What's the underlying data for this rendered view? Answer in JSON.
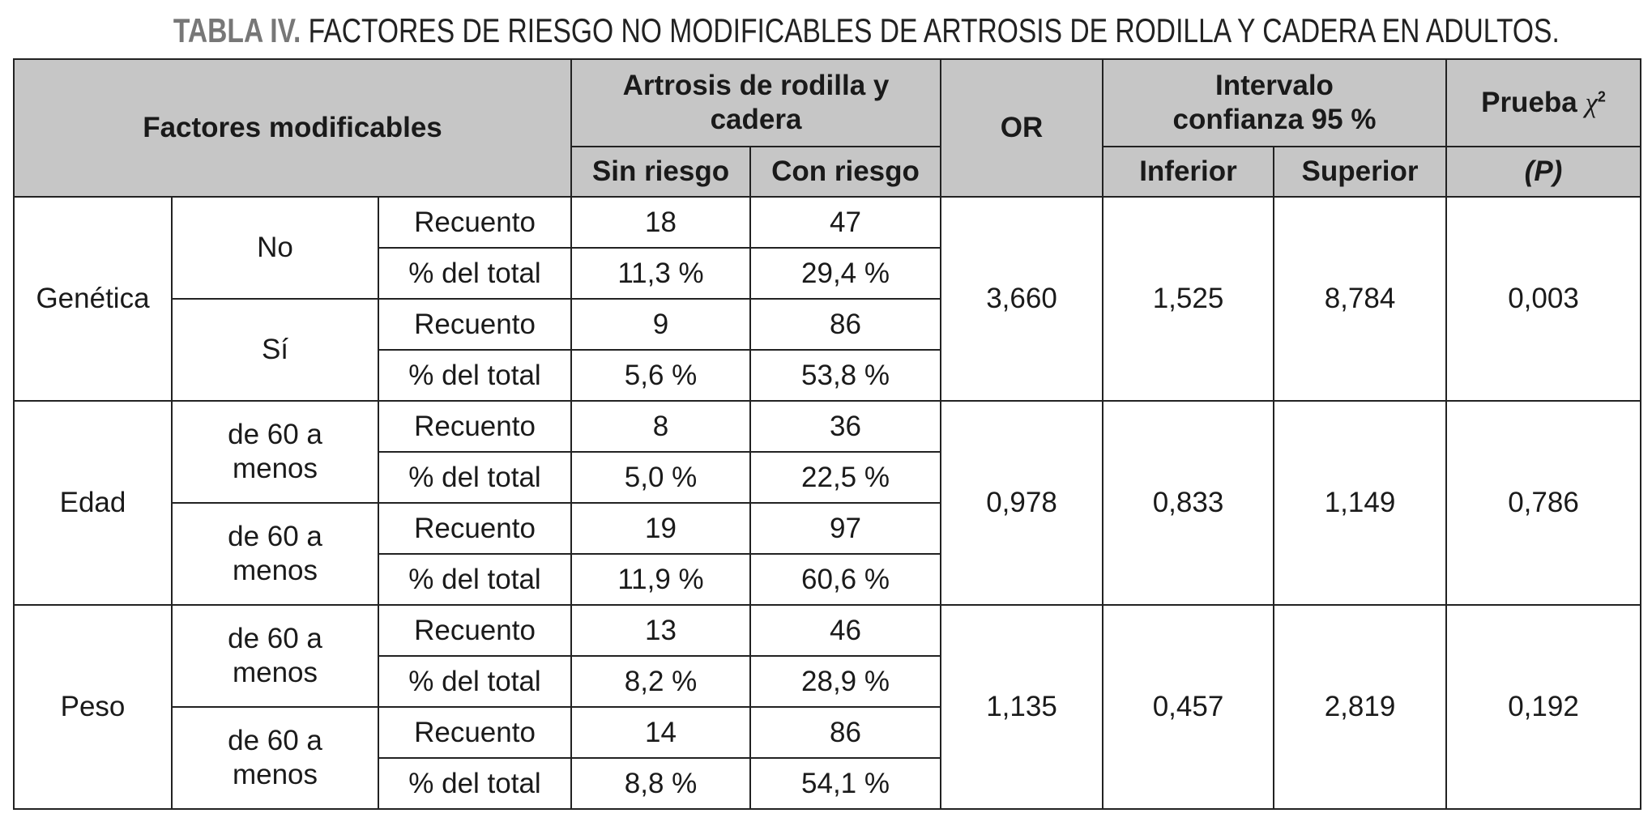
{
  "title": {
    "label": "TABLA IV.",
    "text": "FACTORES DE RIESGO NO MODIFICABLES DE ARTROSIS DE RODILLA Y CADERA EN ADULTOS."
  },
  "header": {
    "factores": "Factores modificables",
    "artrosis": "Artrosis de rodilla y cadera",
    "sin_riesgo": "Sin riesgo",
    "con_riesgo": "Con riesgo",
    "or": "OR",
    "intervalo": "Intervalo confianza 95 %",
    "inferior": "Inferior",
    "superior": "Superior",
    "prueba": "Prueba",
    "chi": "χ",
    "chi_sup": "2",
    "p": "(P)"
  },
  "groups": [
    {
      "factor": "Genética",
      "or": "3,660",
      "inferior": "1,525",
      "superior": "8,784",
      "p": "0,003",
      "subgroups": [
        {
          "label": "No",
          "rows": [
            {
              "tipo": "Recuento",
              "sin": "18",
              "con": "47"
            },
            {
              "tipo": "% del total",
              "sin": "11,3 %",
              "con": "29,4 %"
            }
          ]
        },
        {
          "label": "Sí",
          "rows": [
            {
              "tipo": "Recuento",
              "sin": "9",
              "con": "86"
            },
            {
              "tipo": "% del total",
              "sin": "5,6 %",
              "con": "53,8 %"
            }
          ]
        }
      ]
    },
    {
      "factor": "Edad",
      "or": "0,978",
      "inferior": "0,833",
      "superior": "1,149",
      "p": "0,786",
      "subgroups": [
        {
          "label": "de 60 a menos",
          "rows": [
            {
              "tipo": "Recuento",
              "sin": "8",
              "con": "36"
            },
            {
              "tipo": "% del total",
              "sin": "5,0 %",
              "con": "22,5 %"
            }
          ]
        },
        {
          "label": "de 60 a menos",
          "rows": [
            {
              "tipo": "Recuento",
              "sin": "19",
              "con": "97"
            },
            {
              "tipo": "% del total",
              "sin": "11,9 %",
              "con": "60,6 %"
            }
          ]
        }
      ]
    },
    {
      "factor": "Peso",
      "or": "1,135",
      "inferior": "0,457",
      "superior": "2,819",
      "p": "0,192",
      "subgroups": [
        {
          "label": "de 60 a menos",
          "rows": [
            {
              "tipo": "Recuento",
              "sin": "13",
              "con": "46"
            },
            {
              "tipo": "% del total",
              "sin": "8,2 %",
              "con": "28,9 %"
            }
          ]
        },
        {
          "label": "de 60 a menos",
          "rows": [
            {
              "tipo": "Recuento",
              "sin": "14",
              "con": "86"
            },
            {
              "tipo": "% del total",
              "sin": "8,8 %",
              "con": "54,1 %"
            }
          ]
        }
      ]
    }
  ]
}
